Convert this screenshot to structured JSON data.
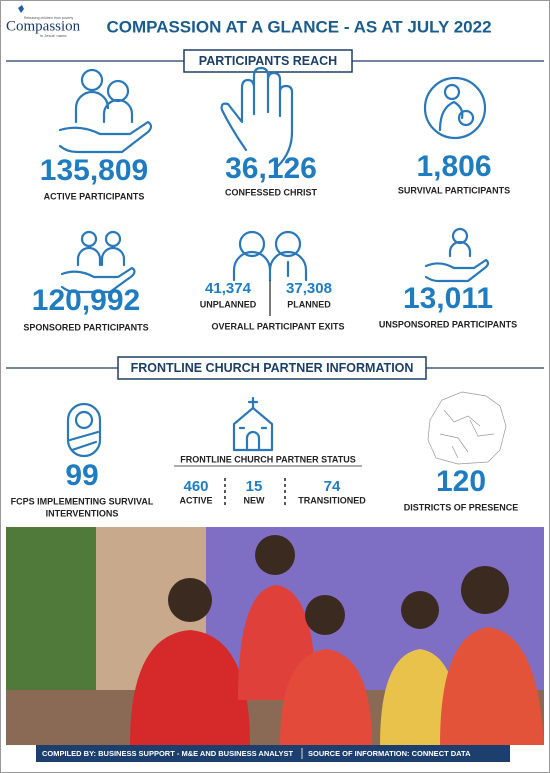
{
  "header": {
    "logo": {
      "tagline_top": "Releasing children from poverty",
      "name": "Compassion",
      "tagline_bottom": "in Jesus' name"
    },
    "title": "COMPASSION AT A GLANCE - AS AT JULY 2022"
  },
  "participants_reach": {
    "heading": "PARTICIPANTS REACH",
    "stats": [
      {
        "value": "135,809",
        "label": "ACTIVE PARTICIPANTS"
      },
      {
        "value": "36,126",
        "label": "CONFESSED CHRIST"
      },
      {
        "value": "1,806",
        "label": "SURVIVAL PARTICIPANTS"
      },
      {
        "value": "120,992",
        "label": "SPONSORED PARTICIPANTS"
      },
      {
        "value": "13,011",
        "label": "UNSPONSORED PARTICIPANTS"
      }
    ],
    "exits": {
      "label": "OVERALL PARTICIPANT EXITS",
      "parts": [
        {
          "value": "41,374",
          "label": "UNPLANNED"
        },
        {
          "value": "37,308",
          "label": "PLANNED"
        }
      ]
    }
  },
  "church_partners": {
    "heading": "FRONTLINE CHURCH PARTNER INFORMATION",
    "fcps": {
      "value": "99",
      "label_lines": [
        "FCPS IMPLEMENTING SURVIVAL",
        "INTERVENTIONS"
      ]
    },
    "status": {
      "title": "FRONTLINE CHURCH PARTNER STATUS",
      "parts": [
        {
          "value": "460",
          "label": "ACTIVE"
        },
        {
          "value": "15",
          "label": "NEW"
        },
        {
          "value": "74",
          "label": "TRANSITIONED"
        }
      ]
    },
    "districts": {
      "value": "120",
      "label": "DISTRICTS OF PRESENCE"
    }
  },
  "footer": {
    "compiled_by": "COMPILED BY: BUSINESS SUPPORT - M&E AND BUSINESS ANALYST",
    "source": "SOURCE OF INFORMATION: CONNECT DATA"
  }
}
